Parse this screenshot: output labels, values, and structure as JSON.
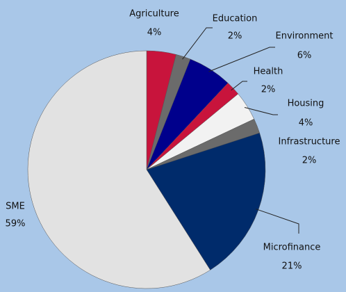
{
  "chart_data": {
    "type": "pie",
    "categories": [
      "Agriculture",
      "Education",
      "Environment",
      "Health",
      "Housing",
      "Infrastructure",
      "Microfinance",
      "SME"
    ],
    "values": [
      4,
      2,
      6,
      2,
      4,
      2,
      21,
      59
    ],
    "value_labels": [
      "4%",
      "2%",
      "6%",
      "2%",
      "4%",
      "2%",
      "21%",
      "59%"
    ],
    "colors": [
      "#c8143c",
      "#6b6b6b",
      "#00008c",
      "#c8143c",
      "#f2f2f2",
      "#6b6b6b",
      "#002b6b",
      "#e2e2e2"
    ]
  }
}
